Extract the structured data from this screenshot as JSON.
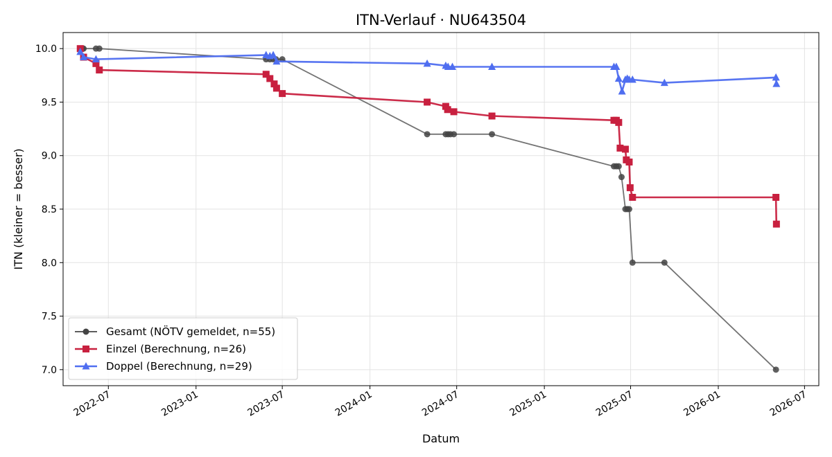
{
  "chart_data": {
    "type": "line",
    "title": "ITN-Verlauf · NU643504",
    "xlabel": "Datum",
    "ylabel": "ITN  (kleiner = besser)",
    "ylim": [
      6.85,
      10.15
    ],
    "xlim": [
      "2022-03-28",
      "2026-07-31"
    ],
    "x_ticks": [
      "2022-07-01",
      "2023-01-01",
      "2023-07-01",
      "2024-01-01",
      "2024-07-01",
      "2025-01-01",
      "2025-07-01",
      "2026-01-01",
      "2026-07-01"
    ],
    "x_tick_labels": [
      "2022-07",
      "2023-01",
      "2023-07",
      "2024-01",
      "2024-07",
      "2025-01",
      "2025-07",
      "2026-01",
      "2026-07"
    ],
    "y_ticks": [
      7.0,
      7.5,
      8.0,
      8.5,
      9.0,
      9.5,
      10.0
    ],
    "y_tick_labels": [
      "7.0",
      "7.5",
      "8.0",
      "8.5",
      "9.0",
      "9.5",
      "10.0"
    ],
    "grid": true,
    "legend_position": "lower-left",
    "series": [
      {
        "name": "Gesamt (NÖTV gemeldet, n=55)",
        "color": "#444444",
        "marker": "circle",
        "points": [
          [
            "2022-05-03",
            10.0
          ],
          [
            "2022-05-08",
            10.0
          ],
          [
            "2022-05-10",
            10.0
          ],
          [
            "2022-06-05",
            10.0
          ],
          [
            "2022-06-12",
            10.0
          ],
          [
            "2023-05-28",
            9.9
          ],
          [
            "2023-06-05",
            9.9
          ],
          [
            "2023-06-12",
            9.9
          ],
          [
            "2023-06-18",
            9.9
          ],
          [
            "2023-07-01",
            9.9
          ],
          [
            "2024-04-30",
            9.2
          ],
          [
            "2024-06-08",
            9.2
          ],
          [
            "2024-06-13",
            9.2
          ],
          [
            "2024-06-18",
            9.2
          ],
          [
            "2024-06-25",
            9.2
          ],
          [
            "2024-09-13",
            9.2
          ],
          [
            "2025-05-27",
            8.9
          ],
          [
            "2025-06-01",
            8.9
          ],
          [
            "2025-06-06",
            8.9
          ],
          [
            "2025-06-12",
            8.8
          ],
          [
            "2025-06-20",
            8.5
          ],
          [
            "2025-06-24",
            8.5
          ],
          [
            "2025-06-28",
            8.5
          ],
          [
            "2025-07-05",
            8.0
          ],
          [
            "2025-09-10",
            8.0
          ],
          [
            "2026-05-02",
            7.0
          ]
        ]
      },
      {
        "name": "Einzel (Berechnung, n=26)",
        "color": "#c8203f",
        "marker": "square",
        "points": [
          [
            "2022-05-03",
            10.0
          ],
          [
            "2022-05-10",
            9.92
          ],
          [
            "2022-06-05",
            9.86
          ],
          [
            "2022-06-12",
            9.8
          ],
          [
            "2023-05-28",
            9.76
          ],
          [
            "2023-06-05",
            9.72
          ],
          [
            "2023-06-14",
            9.67
          ],
          [
            "2023-06-19",
            9.63
          ],
          [
            "2023-07-01",
            9.58
          ],
          [
            "2024-04-30",
            9.5
          ],
          [
            "2024-06-08",
            9.46
          ],
          [
            "2024-06-12",
            9.43
          ],
          [
            "2024-06-25",
            9.41
          ],
          [
            "2024-09-13",
            9.37
          ],
          [
            "2025-05-27",
            9.33
          ],
          [
            "2025-06-01",
            9.33
          ],
          [
            "2025-06-06",
            9.31
          ],
          [
            "2025-06-09",
            9.07
          ],
          [
            "2025-06-20",
            9.06
          ],
          [
            "2025-06-22",
            8.96
          ],
          [
            "2025-06-28",
            8.94
          ],
          [
            "2025-06-30",
            8.7
          ],
          [
            "2025-07-05",
            8.61
          ],
          [
            "2026-05-02",
            8.61
          ],
          [
            "2026-05-03",
            8.36
          ]
        ]
      },
      {
        "name": "Doppel (Berechnung, n=29)",
        "color": "#4f6ef0",
        "marker": "triangle",
        "points": [
          [
            "2022-05-03",
            9.97
          ],
          [
            "2022-05-10",
            9.92
          ],
          [
            "2022-06-05",
            9.9
          ],
          [
            "2023-05-28",
            9.94
          ],
          [
            "2023-06-05",
            9.93
          ],
          [
            "2023-06-12",
            9.94
          ],
          [
            "2023-06-19",
            9.88
          ],
          [
            "2024-04-30",
            9.86
          ],
          [
            "2024-06-08",
            9.84
          ],
          [
            "2024-06-13",
            9.83
          ],
          [
            "2024-06-22",
            9.83
          ],
          [
            "2024-09-13",
            9.83
          ],
          [
            "2025-05-27",
            9.83
          ],
          [
            "2025-06-01",
            9.83
          ],
          [
            "2025-06-06",
            9.72
          ],
          [
            "2025-06-13",
            9.6
          ],
          [
            "2025-06-20",
            9.71
          ],
          [
            "2025-06-24",
            9.72
          ],
          [
            "2025-06-28",
            9.71
          ],
          [
            "2025-07-05",
            9.71
          ],
          [
            "2025-09-10",
            9.68
          ],
          [
            "2026-05-02",
            9.73
          ],
          [
            "2026-05-03",
            9.67
          ]
        ]
      }
    ]
  }
}
